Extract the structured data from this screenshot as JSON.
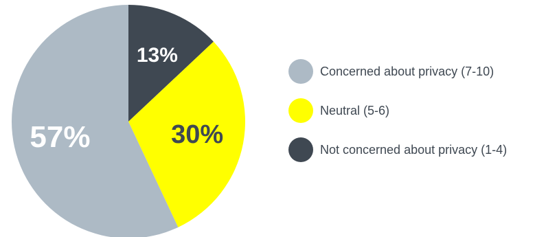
{
  "chart_data": {
    "type": "pie",
    "title": "",
    "slices": [
      {
        "label": "Not concerned about privacy (1-4)",
        "value": 13,
        "display": "13%",
        "color": "#3f4852",
        "label_color": "#ffffff"
      },
      {
        "label": "Neutral (5-6)",
        "value": 30,
        "display": "30%",
        "color": "#ffff00",
        "label_color": "#3f4852"
      },
      {
        "label": "Concerned about privacy (7-10)",
        "value": 57,
        "display": "57%",
        "color": "#adbac5",
        "label_color": "#ffffff"
      }
    ],
    "legend": [
      {
        "label": "Concerned about privacy (7-10)",
        "color": "#adbac5"
      },
      {
        "label": "Neutral (5-6)",
        "color": "#ffff00"
      },
      {
        "label": "Not concerned about privacy (1-4)",
        "color": "#3f4852"
      }
    ],
    "legend_position": "right"
  }
}
